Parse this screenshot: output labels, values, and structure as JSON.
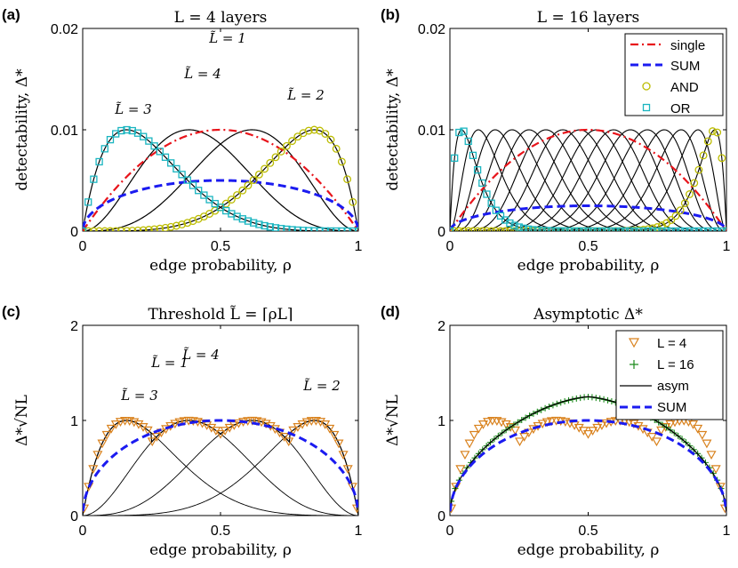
{
  "chart_data": [
    {
      "panel_label": "(a)",
      "type": "line",
      "title": "L = 4 layers",
      "xlabel": "edge probability, ρ",
      "ylabel": "detectability, Δ*",
      "xlim": [
        0,
        1
      ],
      "ylim": [
        0,
        0.02
      ],
      "xticks": [
        "0",
        "0.5",
        "1"
      ],
      "yticks": [
        "0",
        "0.01",
        "0.02"
      ],
      "curve_labels": [
        "L̃ = 1",
        "L̃ = 4",
        "L̃ = 3",
        "L̃ = 2"
      ],
      "series": [
        {
          "name": "single",
          "formula": "0.04*ρ*(1-ρ)",
          "style": "red dash-dot"
        },
        {
          "name": "SUM",
          "formula": "0.01*sqrt(ρ*(1-ρ))",
          "style": "blue dashed"
        },
        {
          "name": "AND",
          "formula": "threshold L̃=4",
          "style": "yellow circles"
        },
        {
          "name": "OR",
          "formula": "threshold L̃=1",
          "style": "cyan squares"
        }
      ]
    },
    {
      "panel_label": "(b)",
      "type": "line",
      "title": "L = 16 layers",
      "xlabel": "edge probability, ρ",
      "ylabel": "detectability, Δ*",
      "xlim": [
        0,
        1
      ],
      "ylim": [
        0,
        0.02
      ],
      "xticks": [
        "0",
        "0.5",
        "1"
      ],
      "yticks": [
        "0",
        "0.01",
        "0.02"
      ],
      "legend": [
        "single",
        "SUM",
        "AND",
        "OR"
      ],
      "legend_position": "top-right",
      "series": [
        {
          "name": "single",
          "formula": "0.04*ρ*(1-ρ)"
        },
        {
          "name": "SUM",
          "formula": "0.005*sqrt(ρ*(1-ρ))"
        },
        {
          "name": "AND",
          "formula": "threshold L̃=16"
        },
        {
          "name": "OR",
          "formula": "threshold L̃=1"
        }
      ]
    },
    {
      "panel_label": "(c)",
      "type": "line",
      "title": "Threshold L̃ = ⌈ρL⌉",
      "xlabel": "edge probability, ρ",
      "ylabel": "Δ*√NL",
      "xlim": [
        0,
        1
      ],
      "ylim": [
        0,
        2
      ],
      "xticks": [
        "0",
        "0.5",
        "1"
      ],
      "yticks": [
        "0",
        "1",
        "2"
      ],
      "curve_labels": [
        "L̃ = 1",
        "L̃ = 4",
        "L̃ = 3",
        "L̃ = 2"
      ],
      "series": [
        {
          "name": "L = 4",
          "formula": "4*sqrt(ρ*(1-ρ))*h(ρ) at L̃=⌈4ρ⌉",
          "style": "orange triangles"
        },
        {
          "name": "SUM",
          "formula": "2*sqrt(ρ*(1-ρ))",
          "style": "blue dashed"
        }
      ]
    },
    {
      "panel_label": "(d)",
      "type": "line",
      "title": "Asymptotic Δ*",
      "xlabel": "edge probability, ρ",
      "ylabel": "Δ*√NL",
      "xlim": [
        0,
        1
      ],
      "ylim": [
        0,
        2
      ],
      "xticks": [
        "0",
        "0.5",
        "1"
      ],
      "yticks": [
        "0",
        "1",
        "2"
      ],
      "legend": [
        "L = 4",
        "L = 16",
        "asym",
        "SUM"
      ],
      "legend_position": "top-right",
      "series": [
        {
          "name": "L = 4",
          "style": "orange triangles"
        },
        {
          "name": "L = 16",
          "style": "green plus"
        },
        {
          "name": "asym",
          "formula": "4*sqrt(ρ*(1-ρ))*h(ρ)",
          "style": "black solid"
        },
        {
          "name": "SUM",
          "formula": "2*sqrt(ρ*(1-ρ))",
          "style": "blue dashed"
        }
      ]
    }
  ],
  "colors": {
    "single": "#e8141b",
    "sum": "#1b1bf0",
    "and": "#bcbc00",
    "and_fill": "#d8d870",
    "or": "#1ab5c0",
    "or_fill": "#8ee0e0",
    "l4": "#d9821e",
    "l16": "#1a8a1a",
    "asym": "#000000",
    "grey": "#000000"
  }
}
